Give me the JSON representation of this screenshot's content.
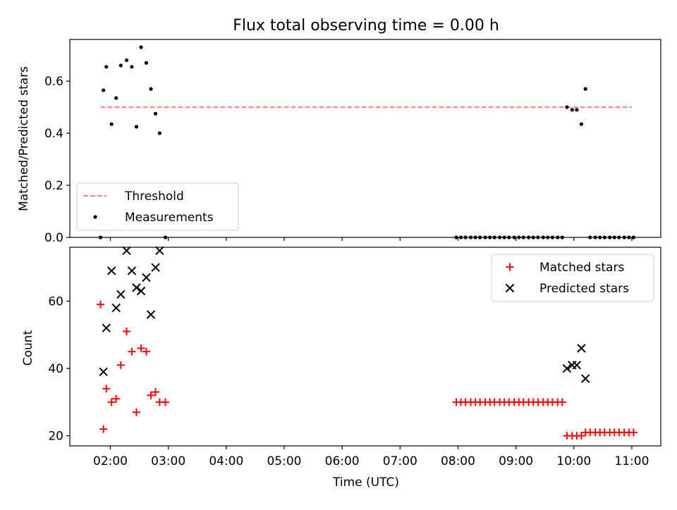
{
  "chart_data": [
    {
      "type": "scatter",
      "title": "Flux total observing time = 0.00 h",
      "xlabel": "",
      "ylabel": "Matched/Predicted stars",
      "ylim": [
        0.0,
        0.76
      ],
      "yticks": [
        0.0,
        0.2,
        0.4,
        0.6
      ],
      "ytick_labels": [
        "0.0",
        "0.2",
        "0.4",
        "0.6"
      ],
      "xlim": [
        1.3,
        11.5
      ],
      "legend_position": "lower-left",
      "series": [
        {
          "name": "Threshold",
          "kind": "dashed-line",
          "color": "#ff7f7f",
          "x": [
            1.83,
            11.0
          ],
          "y": [
            0.5,
            0.5
          ]
        },
        {
          "name": "Measurements",
          "kind": "dot",
          "color": "#000000",
          "x": [
            1.83,
            1.88,
            1.93,
            2.02,
            2.1,
            2.18,
            2.28,
            2.37,
            2.45,
            2.53,
            2.62,
            2.7,
            2.78,
            2.85,
            2.95,
            7.97,
            8.05,
            8.13,
            8.22,
            8.3,
            8.38,
            8.47,
            8.55,
            8.63,
            8.72,
            8.8,
            8.88,
            8.97,
            9.05,
            9.13,
            9.22,
            9.3,
            9.38,
            9.47,
            9.55,
            9.63,
            9.72,
            9.8,
            9.88,
            9.97,
            10.05,
            10.13,
            10.2,
            10.28,
            10.37,
            10.45,
            10.53,
            10.62,
            10.7,
            10.78,
            10.87,
            10.95,
            11.03
          ],
          "y": [
            0.0,
            0.565,
            0.655,
            0.435,
            0.535,
            0.66,
            0.68,
            0.655,
            0.425,
            0.73,
            0.67,
            0.57,
            0.475,
            0.4,
            0.0,
            0,
            0,
            0,
            0,
            0,
            0,
            0,
            0,
            0,
            0,
            0,
            0,
            0,
            0,
            0,
            0,
            0,
            0,
            0,
            0,
            0,
            0,
            0,
            0.5,
            0.49,
            0.49,
            0.435,
            0.57,
            0,
            0,
            0,
            0,
            0,
            0,
            0,
            0,
            0,
            0
          ]
        }
      ]
    },
    {
      "type": "scatter",
      "title": "",
      "xlabel": "Time (UTC)",
      "ylabel": "Count",
      "ylim": [
        17.0,
        76.0
      ],
      "yticks": [
        20,
        40,
        60
      ],
      "ytick_labels": [
        "20",
        "40",
        "60"
      ],
      "xlim": [
        1.3,
        11.5
      ],
      "xticks": [
        2,
        3,
        4,
        5,
        6,
        7,
        8,
        9,
        10,
        11
      ],
      "xtick_labels": [
        "02:00",
        "03:00",
        "04:00",
        "05:00",
        "06:00",
        "07:00",
        "08:00",
        "09:00",
        "10:00",
        "11:00"
      ],
      "legend_position": "upper-right",
      "series": [
        {
          "name": "Matched stars",
          "kind": "plus",
          "color": "#ff0000",
          "x": [
            1.83,
            1.88,
            1.93,
            2.02,
            2.1,
            2.18,
            2.28,
            2.37,
            2.45,
            2.53,
            2.62,
            2.7,
            2.78,
            2.85,
            2.95,
            7.97,
            8.05,
            8.13,
            8.22,
            8.3,
            8.38,
            8.47,
            8.55,
            8.63,
            8.72,
            8.8,
            8.88,
            8.97,
            9.05,
            9.13,
            9.22,
            9.3,
            9.38,
            9.47,
            9.55,
            9.63,
            9.72,
            9.8,
            9.88,
            9.97,
            10.05,
            10.13,
            10.2,
            10.28,
            10.37,
            10.45,
            10.53,
            10.62,
            10.7,
            10.78,
            10.87,
            10.95,
            11.03
          ],
          "y": [
            59,
            22,
            34,
            30,
            31,
            41,
            51,
            45,
            27,
            46,
            45,
            32,
            33,
            30,
            30,
            30,
            30,
            30,
            30,
            30,
            30,
            30,
            30,
            30,
            30,
            30,
            30,
            30,
            30,
            30,
            30,
            30,
            30,
            30,
            30,
            30,
            30,
            30,
            20,
            20,
            20,
            20,
            21,
            21,
            21,
            21,
            21,
            21,
            21,
            21,
            21,
            21,
            21
          ]
        },
        {
          "name": "Predicted stars",
          "kind": "x",
          "color": "#000000",
          "x": [
            1.88,
            1.93,
            2.02,
            2.1,
            2.18,
            2.28,
            2.37,
            2.45,
            2.53,
            2.62,
            2.7,
            2.78,
            2.85,
            9.88,
            9.97,
            10.05,
            10.13,
            10.2
          ],
          "y": [
            39,
            52,
            69,
            58,
            62,
            75,
            69,
            64,
            63,
            67,
            56,
            70,
            75,
            40,
            41,
            41,
            46,
            37
          ]
        }
      ]
    }
  ]
}
